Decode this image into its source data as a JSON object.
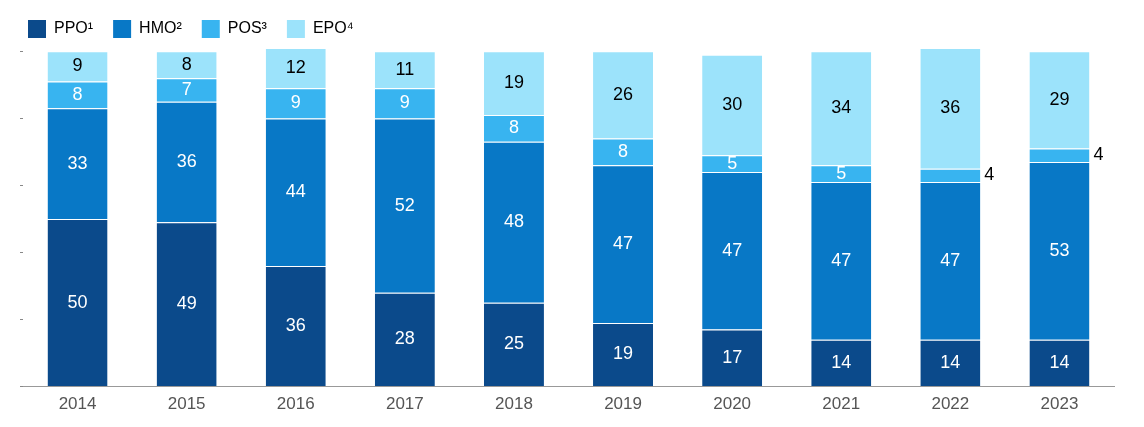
{
  "chart_data": {
    "type": "bar",
    "stacked": true,
    "categories": [
      "2014",
      "2015",
      "2016",
      "2017",
      "2018",
      "2019",
      "2020",
      "2021",
      "2022",
      "2023"
    ],
    "series": [
      {
        "name": "PPO¹",
        "color": "#0b4a8b",
        "values": [
          50,
          49,
          36,
          28,
          25,
          19,
          17,
          14,
          14,
          14
        ]
      },
      {
        "name": "HMO²",
        "color": "#0878c6",
        "values": [
          33,
          36,
          44,
          52,
          48,
          47,
          47,
          47,
          47,
          53
        ]
      },
      {
        "name": "POS³",
        "color": "#38b4f0",
        "values": [
          8,
          7,
          9,
          9,
          8,
          8,
          5,
          5,
          4,
          4
        ]
      },
      {
        "name": "EPO⁴",
        "color": "#9ce3fb",
        "values": [
          9,
          8,
          12,
          11,
          19,
          26,
          30,
          34,
          36,
          29
        ]
      }
    ],
    "ylim": [
      0,
      101
    ],
    "yticks": [
      {
        "value": 0,
        "label": null
      },
      {
        "value": 20,
        "label": null
      },
      {
        "value": 40,
        "label": null
      },
      {
        "value": 60,
        "label": null
      },
      {
        "value": 80,
        "label": null
      },
      {
        "value": 100,
        "label": null
      }
    ],
    "tick_labels": "x",
    "grid": false,
    "legend": "top left",
    "data_labels": true
  }
}
